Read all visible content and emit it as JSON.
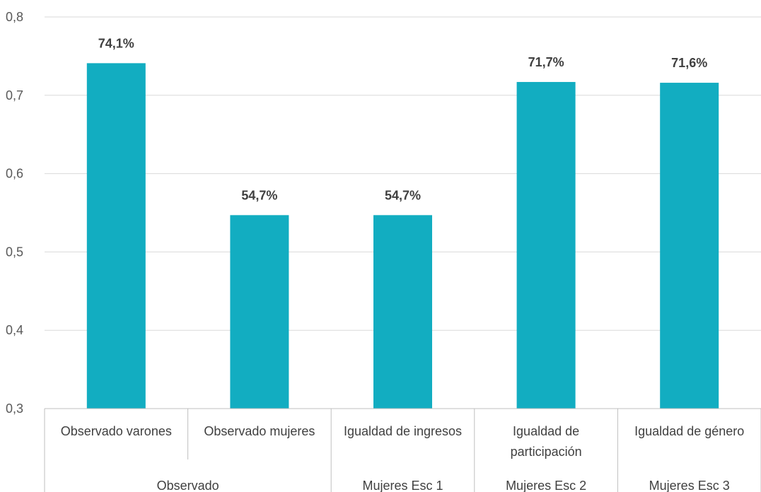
{
  "chart_data": {
    "type": "bar",
    "categories": [
      [
        "Observado  varones"
      ],
      [
        "Observado mujeres"
      ],
      [
        "Igualdad de ingresos"
      ],
      [
        "Igualdad de",
        "participación"
      ],
      [
        "Igualdad de género"
      ]
    ],
    "groups": [
      {
        "label": "Observado",
        "span": [
          0,
          1
        ]
      },
      {
        "label": "Mujeres Esc 1",
        "span": [
          2,
          2
        ]
      },
      {
        "label": "Mujeres Esc 2",
        "span": [
          3,
          3
        ]
      },
      {
        "label": "Mujeres Esc 3",
        "span": [
          4,
          4
        ]
      }
    ],
    "values": [
      0.741,
      0.547,
      0.547,
      0.717,
      0.716
    ],
    "data_labels": [
      "74,1%",
      "54,7%",
      "54,7%",
      "71,7%",
      "71,6%"
    ],
    "yticks": [
      "0,3",
      "0,4",
      "0,5",
      "0,6",
      "0,7",
      "0,8"
    ],
    "ylim": [
      0.3,
      0.8
    ],
    "grid": true,
    "colors": {
      "bar": "#12ADC1",
      "grid": "#D9D9D9",
      "axis": "#BFBFBF"
    }
  }
}
